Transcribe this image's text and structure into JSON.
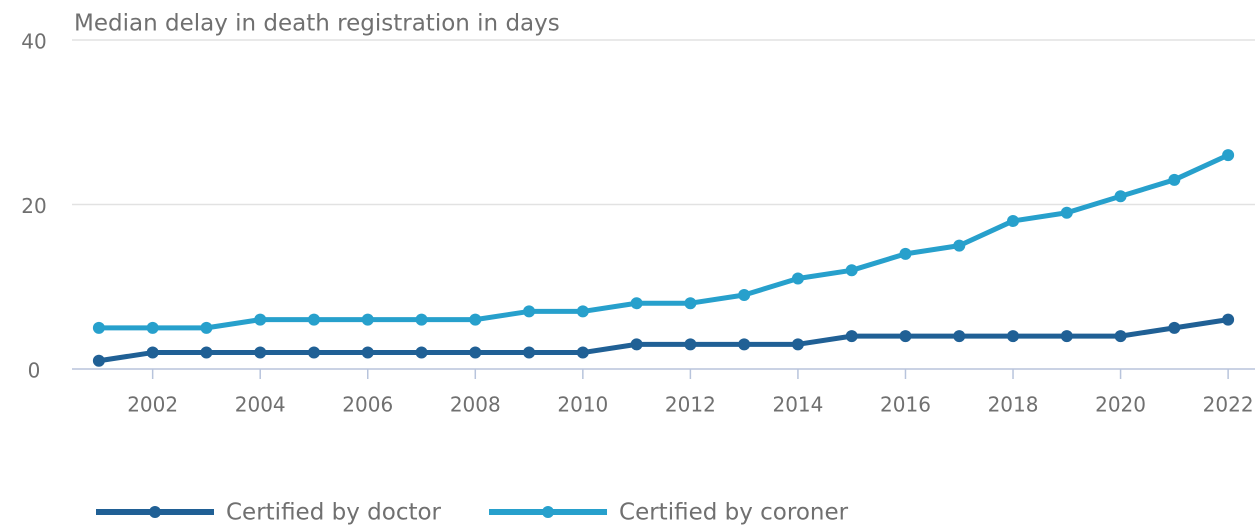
{
  "chart_data": {
    "type": "line",
    "title": "Median delay in death registration in days",
    "x": [
      2001,
      2002,
      2003,
      2004,
      2005,
      2006,
      2007,
      2008,
      2009,
      2010,
      2011,
      2012,
      2013,
      2014,
      2015,
      2016,
      2017,
      2018,
      2019,
      2020,
      2021,
      2022
    ],
    "series": [
      {
        "name": "Certified by doctor",
        "color": "#206095",
        "values": [
          1,
          2,
          2,
          2,
          2,
          2,
          2,
          2,
          2,
          2,
          3,
          3,
          3,
          3,
          4,
          4,
          4,
          4,
          4,
          4,
          5,
          6
        ]
      },
      {
        "name": "Certified by coroner",
        "color": "#27a0cc",
        "values": [
          5,
          5,
          5,
          6,
          6,
          6,
          6,
          6,
          7,
          7,
          8,
          8,
          9,
          11,
          12,
          14,
          15,
          18,
          19,
          21,
          23,
          26
        ]
      }
    ],
    "xlim": [
      2000.5,
      2022.5
    ],
    "xticks": [
      2002,
      2004,
      2006,
      2008,
      2010,
      2012,
      2014,
      2016,
      2018,
      2020,
      2022
    ],
    "ylim": [
      0,
      40
    ],
    "yticks": [
      0,
      20,
      40
    ],
    "grid": true,
    "legend": "bottom"
  }
}
